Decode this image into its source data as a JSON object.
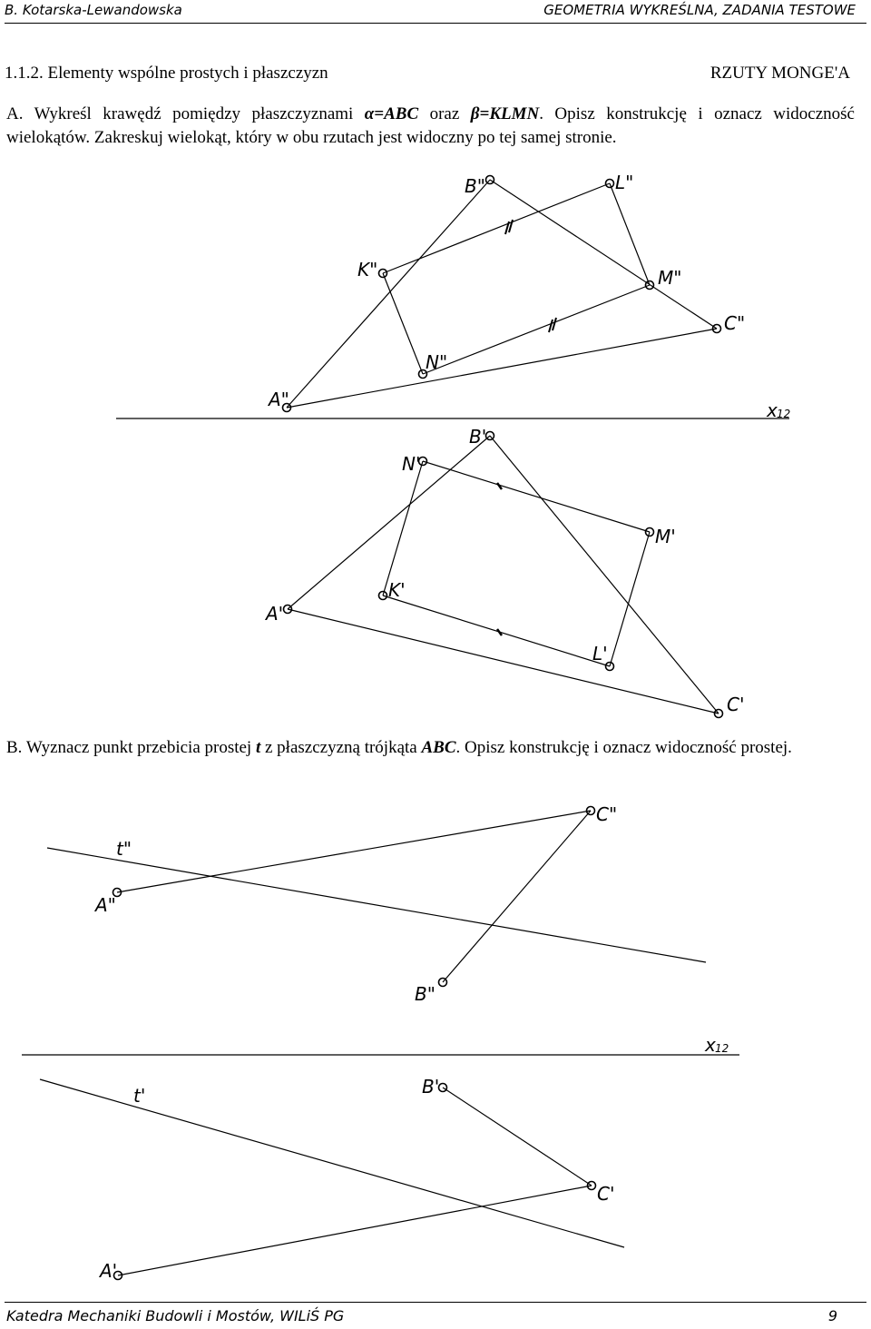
{
  "header": {
    "author": "B. Kotarska-Lewandowska",
    "book": "GEOMETRIA WYKREŚLNA, ZADANIA TESTOWE"
  },
  "section": {
    "title": "1.1.2. Elementy wspólne prostych i płaszczyzn",
    "tag": "RZUTY MONGE'A"
  },
  "task_a": {
    "t1": "A. Wykreśl krawędź pomiędzy płaszczyznami ",
    "alpha": "α=ABC",
    "t2": " oraz ",
    "beta": "β=KLMN",
    "t3": ". Opisz konstrukcję i oznacz widoczność wielokątów. Zakreskuj wielokąt, który w obu rzutach jest widoczny po tej samej stronie."
  },
  "task_b": {
    "t1": "B. Wyznacz punkt przebicia prostej ",
    "t": "t",
    "t2": " z płaszczyzną trójkąta ",
    "abc": "ABC",
    "t3": ". Opisz konstrukcję i oznacz widoczność prostej."
  },
  "diagram_a": {
    "axis_label": "x",
    "axis_sub": "12",
    "labels": {
      "B2": "B\"",
      "L2": "L\"",
      "K2": "K\"",
      "M2": "M\"",
      "C2": "C\"",
      "N2": "N\"",
      "A2": "A\"",
      "B1": "B'",
      "N1": "N'",
      "M1": "M'",
      "K1": "K'",
      "A1": "A'",
      "L1": "L'",
      "C1": "C'"
    }
  },
  "diagram_b": {
    "axis_label": "x",
    "axis_sub": "12",
    "labels": {
      "C2": "C\"",
      "t2": "t\"",
      "A2": "A\"",
      "B2": "B\"",
      "t1": "t'",
      "B1": "B'",
      "C1": "C'",
      "A1": "A'"
    }
  },
  "footer": {
    "dept": "Katedra Mechaniki Budowli i Mostów, WILiŚ PG",
    "page": "9"
  }
}
